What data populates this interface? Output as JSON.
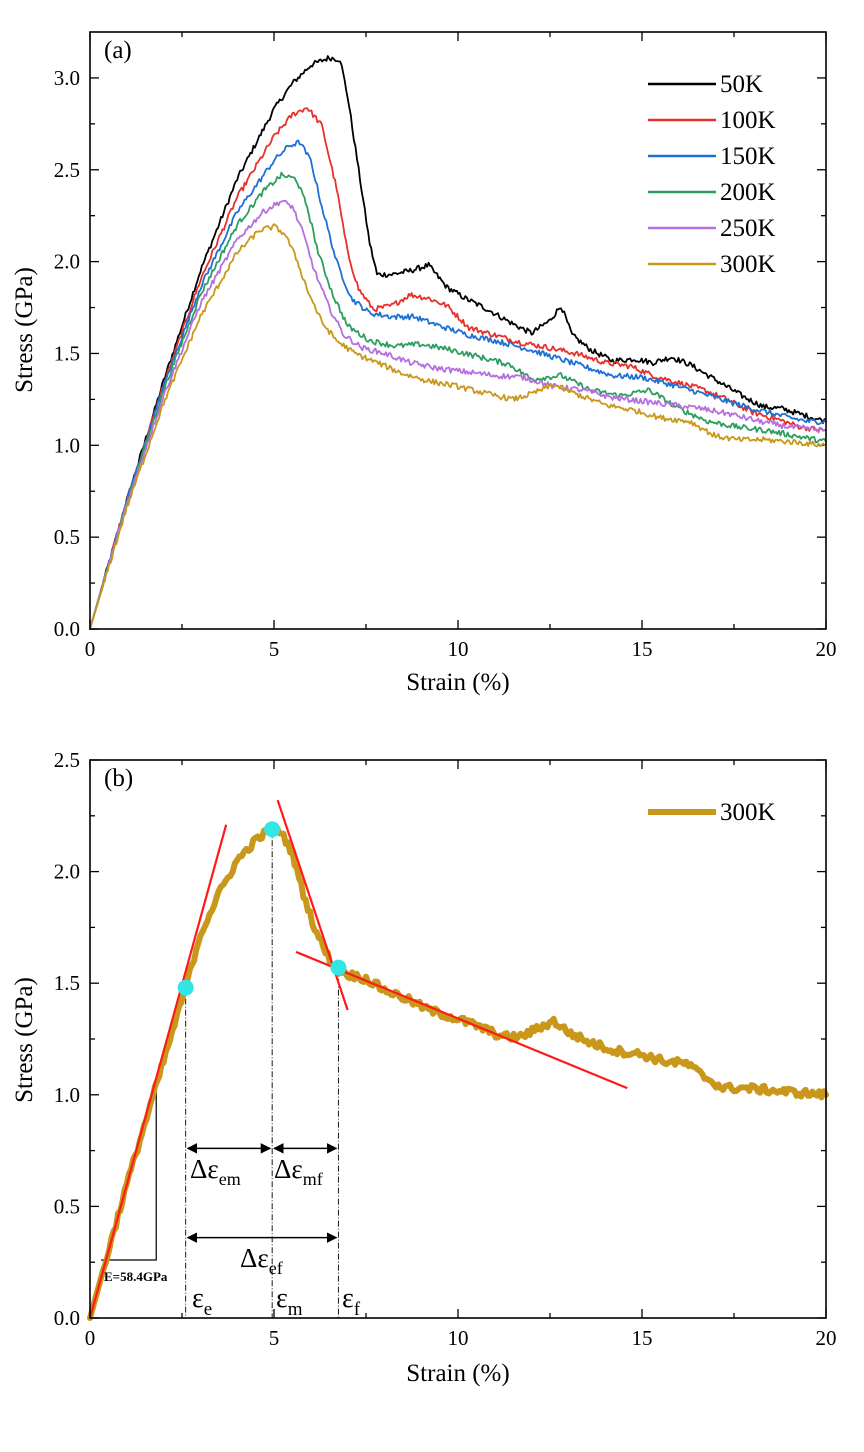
{
  "chart_data": [
    {
      "type": "line",
      "panel_label": "(a)",
      "xlabel": "Strain (%)",
      "ylabel": "Stress (GPa)",
      "xlim": [
        0,
        20
      ],
      "ylim": [
        0,
        3.25
      ],
      "x_ticks": [
        0,
        5,
        10,
        15,
        20
      ],
      "y_ticks": [
        0.0,
        0.5,
        1.0,
        1.5,
        2.0,
        2.5,
        3.0
      ],
      "x_tick_labels": [
        "0",
        "5",
        "10",
        "15",
        "20"
      ],
      "y_tick_labels": [
        "0.0",
        "0.5",
        "1.0",
        "1.5",
        "2.0",
        "2.5",
        "3.0"
      ],
      "legend_position": "top-right",
      "series": [
        {
          "name": "50K",
          "color": "#000000",
          "x": [
            0,
            1,
            2,
            3,
            4,
            5,
            5.5,
            6,
            6.5,
            6.8,
            7,
            7.3,
            7.6,
            7.8,
            8.2,
            8.7,
            9.2,
            9.7,
            10.2,
            10.8,
            11.5,
            12.0,
            12.5,
            12.8,
            13.1,
            13.6,
            14.2,
            14.8,
            15.3,
            15.8,
            16.3,
            16.8,
            17.3,
            17.8,
            18.3,
            18.8,
            19.3,
            20
          ],
          "y": [
            0,
            0.7,
            1.35,
            1.95,
            2.45,
            2.83,
            2.97,
            3.07,
            3.11,
            3.1,
            2.9,
            2.5,
            2.1,
            1.93,
            1.93,
            1.95,
            1.98,
            1.86,
            1.8,
            1.74,
            1.66,
            1.61,
            1.68,
            1.76,
            1.6,
            1.52,
            1.46,
            1.47,
            1.45,
            1.48,
            1.44,
            1.38,
            1.32,
            1.26,
            1.21,
            1.2,
            1.17,
            1.13
          ]
        },
        {
          "name": "100K",
          "color": "#e8302a",
          "x": [
            0,
            1,
            2,
            3,
            4,
            5,
            5.5,
            5.9,
            6.3,
            6.7,
            7.0,
            7.3,
            7.7,
            8.2,
            8.7,
            9.2,
            9.7,
            10.3,
            11,
            11.7,
            12.5,
            13.2,
            14,
            14.7,
            15.3,
            16,
            16.7,
            17.3,
            18,
            18.7,
            19.3,
            20
          ],
          "y": [
            0,
            0.7,
            1.33,
            1.9,
            2.35,
            2.68,
            2.8,
            2.84,
            2.74,
            2.4,
            2.05,
            1.85,
            1.74,
            1.76,
            1.82,
            1.8,
            1.76,
            1.64,
            1.6,
            1.56,
            1.53,
            1.5,
            1.45,
            1.43,
            1.38,
            1.34,
            1.3,
            1.25,
            1.18,
            1.14,
            1.1,
            1.08
          ]
        },
        {
          "name": "150K",
          "color": "#1f6fd6",
          "x": [
            0,
            1,
            2,
            3,
            4,
            5,
            5.4,
            5.7,
            6.0,
            6.3,
            6.7,
            7.1,
            7.6,
            8.2,
            8.8,
            9.5,
            10.3,
            11,
            11.8,
            12.6,
            13.4,
            14.2,
            15,
            15.8,
            16.5,
            17.3,
            18,
            18.8,
            19.5,
            20
          ],
          "y": [
            0,
            0.7,
            1.32,
            1.86,
            2.27,
            2.55,
            2.63,
            2.65,
            2.55,
            2.3,
            2.0,
            1.8,
            1.72,
            1.7,
            1.7,
            1.65,
            1.6,
            1.57,
            1.53,
            1.48,
            1.43,
            1.38,
            1.37,
            1.33,
            1.29,
            1.24,
            1.2,
            1.16,
            1.13,
            1.13
          ]
        },
        {
          "name": "200K",
          "color": "#2e9e5e",
          "x": [
            0,
            1,
            2,
            3,
            4,
            4.7,
            5.2,
            5.6,
            5.9,
            6.2,
            6.6,
            7.0,
            7.6,
            8.3,
            9.0,
            9.8,
            10.6,
            11.4,
            12.0,
            12.8,
            13.6,
            14.4,
            15.2,
            16.0,
            16.8,
            17.6,
            18.4,
            19.2,
            20
          ],
          "y": [
            0,
            0.69,
            1.3,
            1.82,
            2.2,
            2.38,
            2.47,
            2.45,
            2.3,
            2.05,
            1.82,
            1.65,
            1.57,
            1.54,
            1.55,
            1.52,
            1.48,
            1.44,
            1.36,
            1.38,
            1.3,
            1.27,
            1.3,
            1.2,
            1.13,
            1.1,
            1.08,
            1.05,
            1.02
          ]
        },
        {
          "name": "250K",
          "color": "#b56fe0",
          "x": [
            0,
            1,
            2,
            3,
            4,
            4.7,
            5.2,
            5.5,
            5.8,
            6.1,
            6.5,
            6.9,
            7.4,
            8.0,
            8.7,
            9.4,
            10.2,
            11.0,
            11.8,
            12.6,
            13.4,
            14.2,
            15.0,
            15.8,
            16.6,
            17.4,
            18.2,
            19.0,
            20
          ],
          "y": [
            0,
            0.68,
            1.27,
            1.77,
            2.12,
            2.27,
            2.33,
            2.3,
            2.15,
            1.95,
            1.75,
            1.6,
            1.53,
            1.5,
            1.45,
            1.42,
            1.4,
            1.38,
            1.37,
            1.32,
            1.3,
            1.26,
            1.24,
            1.22,
            1.2,
            1.17,
            1.13,
            1.1,
            1.08
          ]
        },
        {
          "name": "300K",
          "color": "#c9981a",
          "x": [
            0,
            1,
            2,
            3,
            4,
            4.6,
            5.0,
            5.3,
            5.6,
            5.9,
            6.3,
            6.7,
            7.2,
            7.8,
            8.5,
            9.2,
            10,
            10.8,
            11.5,
            12.0,
            12.6,
            13.2,
            14,
            14.8,
            15.5,
            16.3,
            17.0,
            17.6,
            18.3,
            19.0,
            20
          ],
          "y": [
            0,
            0.66,
            1.23,
            1.7,
            2.05,
            2.17,
            2.19,
            2.15,
            2.02,
            1.85,
            1.67,
            1.57,
            1.5,
            1.45,
            1.39,
            1.35,
            1.32,
            1.28,
            1.25,
            1.28,
            1.33,
            1.28,
            1.22,
            1.19,
            1.15,
            1.13,
            1.05,
            1.03,
            1.03,
            1.02,
            1.0
          ]
        }
      ]
    },
    {
      "type": "line",
      "panel_label": "(b)",
      "xlabel": "Strain (%)",
      "ylabel": "Stress (GPa)",
      "xlim": [
        0,
        20
      ],
      "ylim": [
        0,
        2.5
      ],
      "x_ticks": [
        0,
        5,
        10,
        15,
        20
      ],
      "y_ticks": [
        0.0,
        0.5,
        1.0,
        1.5,
        2.0,
        2.5
      ],
      "x_tick_labels": [
        "0",
        "5",
        "10",
        "15",
        "20"
      ],
      "y_tick_labels": [
        "0.0",
        "0.5",
        "1.0",
        "1.5",
        "2.0",
        "2.5"
      ],
      "legend_position": "top-right",
      "series": [
        {
          "name": "300K",
          "color": "#c9981a",
          "x": [
            0,
            1,
            2,
            2.6,
            3,
            3.5,
            4,
            4.5,
            4.9,
            5.2,
            5.5,
            5.8,
            6.1,
            6.4,
            6.7,
            7.0,
            7.5,
            8.0,
            8.6,
            9.2,
            9.8,
            10.5,
            11.2,
            11.7,
            12.2,
            12.6,
            13.0,
            13.5,
            14.2,
            15.0,
            15.6,
            16.2,
            16.7,
            17.2,
            17.8,
            18.5,
            19.2,
            20
          ],
          "y": [
            0,
            0.6,
            1.15,
            1.48,
            1.72,
            1.9,
            2.05,
            2.14,
            2.19,
            2.18,
            2.08,
            1.9,
            1.75,
            1.64,
            1.56,
            1.54,
            1.52,
            1.47,
            1.43,
            1.38,
            1.35,
            1.31,
            1.26,
            1.26,
            1.3,
            1.33,
            1.28,
            1.24,
            1.2,
            1.18,
            1.15,
            1.14,
            1.08,
            1.03,
            1.03,
            1.02,
            1.01,
            1.0
          ]
        }
      ],
      "fit_lines_color": "#ff1a1a",
      "fit_lines": [
        {
          "x": [
            0,
            3.7
          ],
          "y": [
            0,
            2.21
          ]
        },
        {
          "x": [
            5.1,
            7.0
          ],
          "y": [
            2.32,
            1.38
          ]
        },
        {
          "x": [
            5.6,
            14.6
          ],
          "y": [
            1.64,
            1.03
          ]
        }
      ],
      "markers": {
        "color": "#33e6e6",
        "points": [
          {
            "x": 2.6,
            "y": 1.48
          },
          {
            "x": 4.95,
            "y": 2.19
          },
          {
            "x": 6.75,
            "y": 1.57
          }
        ]
      },
      "vertical_guides_x": [
        2.6,
        4.95,
        6.75
      ],
      "modulus_triangle": {
        "x0": 0.3,
        "x1": 1.8,
        "y_base": 0.26,
        "y_top": 1.08
      },
      "annotations": {
        "modulus": "E=58.4GPa",
        "delta_em": {
          "base": "Δε",
          "sub": "em"
        },
        "delta_mf": {
          "base": "Δε",
          "sub": "mf"
        },
        "delta_ef": {
          "base": "Δε",
          "sub": "ef"
        },
        "eps_e": {
          "base": "ε",
          "sub": "e"
        },
        "eps_m": {
          "base": "ε",
          "sub": "m"
        },
        "eps_f": {
          "base": "ε",
          "sub": "f"
        }
      },
      "arrows": [
        {
          "x1": 2.6,
          "x2": 4.95,
          "y": 0.76
        },
        {
          "x1": 4.95,
          "x2": 6.75,
          "y": 0.76
        },
        {
          "x1": 2.6,
          "x2": 6.75,
          "y": 0.36
        }
      ]
    }
  ]
}
